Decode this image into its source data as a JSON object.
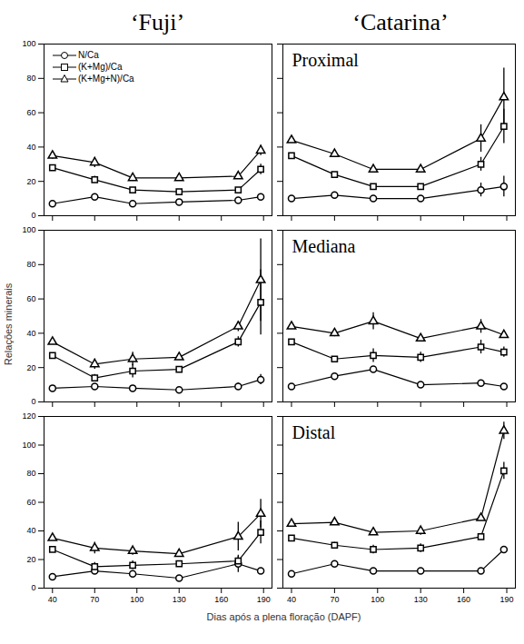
{
  "chart_data": {
    "type": "line",
    "y_label": "Relações minerais",
    "x_label": "Dias após a plena floração (DAPF)",
    "columns": [
      "‘Fuji’",
      "‘Catarina’"
    ],
    "x": [
      40,
      70,
      97,
      130,
      172,
      188
    ],
    "xlim": [
      34,
      196
    ],
    "xticks": [
      40,
      70,
      100,
      130,
      160,
      190
    ],
    "panels": [
      {
        "column": "‘Fuji’",
        "label": null,
        "ylim": [
          0,
          100
        ],
        "yticks": [
          0,
          20,
          40,
          60,
          80,
          100
        ],
        "tick_labels": "y",
        "legend": "top-left",
        "series": [
          {
            "name": "N/Ca",
            "marker": "circle",
            "color": "#000000",
            "values": [
              7,
              11,
              7,
              8,
              9,
              11
            ],
            "errors": [
              null,
              1,
              null,
              null,
              null,
              1
            ]
          },
          {
            "name": "(K+Mg)/Ca",
            "marker": "square",
            "color": "#000000",
            "values": [
              28,
              21,
              15,
              14,
              15,
              27
            ],
            "errors": [
              1,
              2,
              null,
              null,
              null,
              3
            ]
          },
          {
            "name": "(K+Mg+N)/Ca",
            "marker": "triangle",
            "color": "#000000",
            "values": [
              35,
              31,
              22,
              22,
              23,
              38
            ],
            "errors": [
              2,
              3,
              null,
              null,
              null,
              3
            ]
          }
        ]
      },
      {
        "column": "‘Catarina’",
        "label": "Proximal",
        "ylim": [
          0,
          100
        ],
        "yticks": [
          0,
          20,
          40,
          60,
          80,
          100
        ],
        "tick_labels": false,
        "series": [
          {
            "name": "N/Ca",
            "marker": "circle",
            "color": "#000000",
            "values": [
              10,
              12,
              10,
              10,
              15,
              17
            ],
            "errors": [
              null,
              null,
              null,
              null,
              4,
              6
            ]
          },
          {
            "name": "(K+Mg)/Ca",
            "marker": "square",
            "color": "#000000",
            "values": [
              35,
              24,
              17,
              17,
              30,
              52
            ],
            "errors": [
              null,
              null,
              1,
              1,
              4,
              10
            ]
          },
          {
            "name": "(K+Mg+N)/Ca",
            "marker": "triangle",
            "color": "#000000",
            "values": [
              44,
              36,
              27,
              27,
              45,
              69
            ],
            "errors": [
              null,
              null,
              null,
              2,
              8,
              17
            ]
          }
        ]
      },
      {
        "column": "‘Fuji’",
        "label": null,
        "ylim": [
          0,
          100
        ],
        "yticks": [
          0,
          20,
          40,
          60,
          80,
          100
        ],
        "tick_labels": "y",
        "series": [
          {
            "name": "N/Ca",
            "marker": "circle",
            "color": "#000000",
            "values": [
              8,
              9,
              8,
              7,
              9,
              13
            ],
            "errors": [
              null,
              null,
              null,
              null,
              2,
              3
            ]
          },
          {
            "name": "(K+Mg)/Ca",
            "marker": "square",
            "color": "#000000",
            "values": [
              27,
              14,
              18,
              19,
              35,
              58
            ],
            "errors": [
              null,
              2,
              4,
              null,
              3,
              19
            ]
          },
          {
            "name": "(K+Mg+N)/Ca",
            "marker": "triangle",
            "color": "#000000",
            "values": [
              35,
              22,
              25,
              26,
              44,
              71
            ],
            "errors": [
              null,
              3,
              4,
              null,
              3,
              24
            ]
          }
        ]
      },
      {
        "column": "‘Catarina’",
        "label": "Mediana",
        "ylim": [
          0,
          100
        ],
        "yticks": [
          0,
          20,
          40,
          60,
          80,
          100
        ],
        "tick_labels": false,
        "series": [
          {
            "name": "N/Ca",
            "marker": "circle",
            "color": "#000000",
            "values": [
              9,
              15,
              19,
              10,
              11,
              9
            ],
            "errors": [
              null,
              null,
              null,
              null,
              null,
              null
            ]
          },
          {
            "name": "(K+Mg)/Ca",
            "marker": "square",
            "color": "#000000",
            "values": [
              35,
              25,
              27,
              26,
              32,
              29
            ],
            "errors": [
              null,
              null,
              4,
              3,
              4,
              3
            ]
          },
          {
            "name": "(K+Mg+N)/Ca",
            "marker": "triangle",
            "color": "#000000",
            "values": [
              44,
              40,
              47,
              37,
              44,
              39
            ],
            "errors": [
              null,
              2,
              5,
              null,
              4,
              2
            ]
          }
        ]
      },
      {
        "column": "‘Fuji’",
        "label": null,
        "ylim": [
          0,
          120
        ],
        "yticks": [
          0,
          20,
          40,
          60,
          80,
          100,
          120
        ],
        "tick_labels": true,
        "series": [
          {
            "name": "N/Ca",
            "marker": "circle",
            "color": "#000000",
            "values": [
              8,
              12,
              10,
              7,
              17,
              12
            ],
            "errors": [
              null,
              2,
              null,
              null,
              6,
              null
            ]
          },
          {
            "name": "(K+Mg)/Ca",
            "marker": "square",
            "color": "#000000",
            "values": [
              27,
              15,
              16,
              17,
              19,
              39
            ],
            "errors": [
              null,
              3,
              3,
              null,
              3,
              8
            ]
          },
          {
            "name": "(K+Mg+N)/Ca",
            "marker": "triangle",
            "color": "#000000",
            "values": [
              35,
              28,
              26,
              24,
              36,
              52
            ],
            "errors": [
              null,
              4,
              3,
              null,
              10,
              10
            ]
          }
        ]
      },
      {
        "column": "‘Catarina’",
        "label": "Distal",
        "ylim": [
          0,
          120
        ],
        "yticks": [
          0,
          20,
          40,
          60,
          80,
          100,
          120
        ],
        "tick_labels": "x",
        "series": [
          {
            "name": "N/Ca",
            "marker": "circle",
            "color": "#000000",
            "values": [
              10,
              17,
              12,
              12,
              12,
              27
            ],
            "errors": [
              null,
              null,
              null,
              null,
              null,
              2
            ]
          },
          {
            "name": "(K+Mg)/Ca",
            "marker": "square",
            "color": "#000000",
            "values": [
              35,
              30,
              27,
              28,
              36,
              82
            ],
            "errors": [
              null,
              2,
              3,
              3,
              null,
              6
            ]
          },
          {
            "name": "(K+Mg+N)/Ca",
            "marker": "triangle",
            "color": "#000000",
            "values": [
              45,
              46,
              39,
              40,
              49,
              110
            ],
            "errors": [
              null,
              2,
              null,
              3,
              null,
              6
            ]
          }
        ]
      }
    ]
  }
}
